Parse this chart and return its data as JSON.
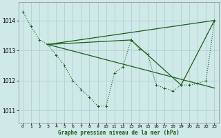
{
  "title": "Graphe pression niveau de la mer (hPa)",
  "background_color": "#cfe8e8",
  "grid_color": "#b0d0d0",
  "line_color": "#1a5e1a",
  "marker_color": "#1a5e1a",
  "xlim": [
    -0.5,
    23.5
  ],
  "ylim": [
    1010.6,
    1014.6
  ],
  "yticks": [
    1011,
    1012,
    1013,
    1014
  ],
  "xticks": [
    0,
    1,
    2,
    3,
    4,
    5,
    6,
    7,
    8,
    9,
    10,
    11,
    12,
    13,
    14,
    15,
    16,
    17,
    18,
    19,
    20,
    21,
    22,
    23
  ],
  "series_dotted": {
    "x": [
      0,
      1,
      2,
      3,
      4,
      5,
      6,
      7,
      8,
      9,
      10,
      11,
      12,
      13,
      14,
      15,
      16,
      17,
      18,
      19,
      20,
      21,
      22,
      23
    ],
    "y": [
      1014.3,
      1013.8,
      1013.35,
      1013.2,
      1012.85,
      1012.5,
      1012.0,
      1011.7,
      1011.45,
      1011.15,
      1011.15,
      1012.25,
      1012.45,
      1013.35,
      1013.05,
      1012.9,
      1011.85,
      1011.75,
      1011.65,
      1011.85,
      1011.85,
      1011.9,
      1012.0,
      1014.0
    ]
  },
  "series_line1": {
    "x": [
      3,
      23
    ],
    "y": [
      1013.2,
      1014.0
    ]
  },
  "series_line2": {
    "x": [
      3,
      23
    ],
    "y": [
      1013.2,
      1011.75
    ]
  },
  "series_triangle": {
    "x": [
      3,
      13,
      19,
      23
    ],
    "y": [
      1013.2,
      1013.35,
      1011.85,
      1014.0
    ]
  }
}
